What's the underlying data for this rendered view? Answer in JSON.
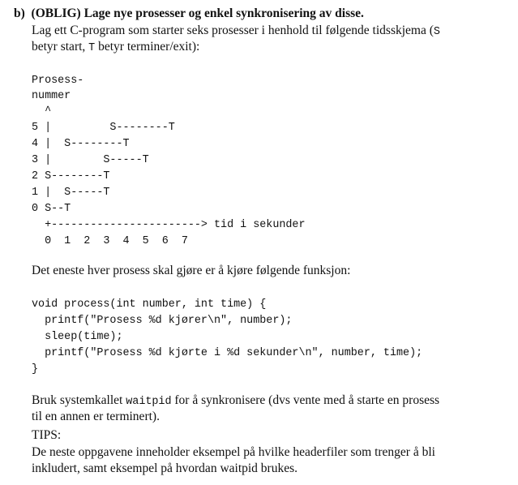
{
  "section": {
    "label": "b)",
    "title": "(OBLIG) Lage nye prosesser og enkel synkronisering av disse."
  },
  "intro": {
    "line1_a": "Lag ett C-program som starter seks prosesser i henhold til følgende tidsskjema (",
    "line1_code": "S",
    "line2_a": "betyr start, ",
    "line2_code": "T",
    "line2_b": " betyr terminer/exit):"
  },
  "schedule": {
    "header": [
      "Prosess-",
      "nummer",
      "  ^"
    ],
    "rows": [
      "5 |         S--------T",
      "4 |  S--------T",
      "3 |        S-----T",
      "2 S--------T",
      "1 |  S-----T",
      "0 S--T"
    ],
    "axis": "  +-----------------------> tid i sekunder",
    "ticks": "  0  1  2  3  4  5  6  7"
  },
  "function_intro": "Det eneste hver prosess skal gjøre er å kjøre følgende funksjon:",
  "code": [
    "void process(int number, int time) {",
    "  printf(\"Prosess %d kjører\\n\", number);",
    "  sleep(time);",
    "  printf(\"Prosess %d kjørte i %d sekunder\\n\", number, time);",
    "}"
  ],
  "waitpid_text": {
    "line1_a": "Bruk systemkallet ",
    "line1_code": "waitpid",
    "line1_b": " for å synkronisere (dvs vente med å starte en prosess",
    "line2": "til en annen er terminert)."
  },
  "tips": {
    "label": "TIPS:",
    "line1": "De neste oppgavene inneholder eksempel på hvilke headerfiler som trenger å bli",
    "line2": "inkludert, samt eksempel på hvordan waitpid brukes."
  }
}
